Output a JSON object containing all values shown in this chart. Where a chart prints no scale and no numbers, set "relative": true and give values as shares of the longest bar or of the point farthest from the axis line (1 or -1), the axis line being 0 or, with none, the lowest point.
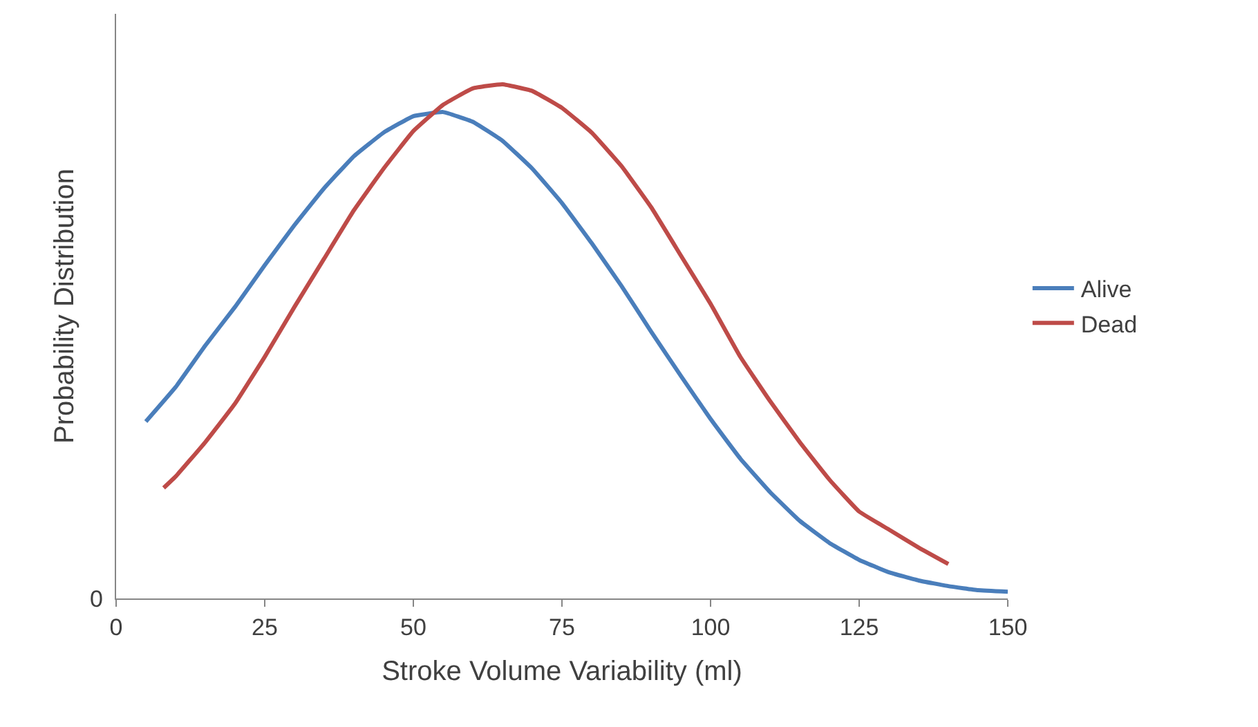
{
  "chart_data": {
    "type": "line",
    "xlabel": "Stroke Volume Variability (ml)",
    "ylabel": "Probability Distribution",
    "relative": true,
    "annotations": [
      "0"
    ],
    "xlim": [
      0,
      150
    ],
    "xticks": [
      0,
      25,
      50,
      75,
      100,
      125,
      150
    ],
    "legend": "right",
    "grid": false,
    "marker": "none",
    "line_style": "solid",
    "series": [
      {
        "name": "Alive",
        "color": "#4a7ebb",
        "x": [
          5,
          10,
          15,
          20,
          25,
          30,
          35,
          40,
          45,
          50,
          55,
          60,
          65,
          70,
          75,
          80,
          85,
          90,
          95,
          100,
          105,
          110,
          115,
          120,
          125,
          130,
          135,
          140,
          145,
          150
        ],
        "values": [
          0.344,
          0.411,
          0.492,
          0.567,
          0.648,
          0.726,
          0.798,
          0.86,
          0.906,
          0.938,
          0.946,
          0.927,
          0.89,
          0.836,
          0.769,
          0.691,
          0.608,
          0.519,
          0.433,
          0.349,
          0.272,
          0.207,
          0.151,
          0.108,
          0.075,
          0.051,
          0.035,
          0.024,
          0.016,
          0.013
        ]
      },
      {
        "name": "Dead",
        "color": "#be4b48",
        "x": [
          8,
          10,
          15,
          20,
          25,
          30,
          35,
          40,
          45,
          50,
          55,
          60,
          65,
          70,
          75,
          80,
          85,
          90,
          95,
          100,
          105,
          110,
          115,
          120,
          125,
          130,
          135,
          140
        ],
        "values": [
          0.215,
          0.237,
          0.304,
          0.379,
          0.47,
          0.567,
          0.661,
          0.755,
          0.836,
          0.909,
          0.96,
          0.992,
          1,
          0.987,
          0.954,
          0.906,
          0.841,
          0.761,
          0.667,
          0.573,
          0.47,
          0.384,
          0.304,
          0.231,
          0.169,
          0.134,
          0.099,
          0.067
        ]
      }
    ]
  }
}
